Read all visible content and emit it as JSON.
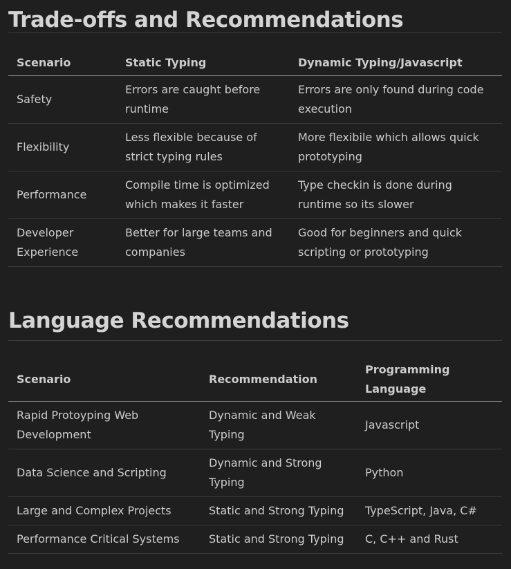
{
  "tradeoffs": {
    "heading": "Trade-offs and Recommendations",
    "headers": [
      "Scenario",
      "Static Typing",
      "Dynamic Typing/Javascript"
    ],
    "rows": [
      [
        "Safety",
        "Errors are caught before runtime",
        "Errors are only found during code execution"
      ],
      [
        "Flexibility",
        "Less flexible because of strict typing rules",
        "More flexibile which allows quick prototyping"
      ],
      [
        "Performance",
        "Compile time is optimized which makes it faster",
        "Type checkin is done during runtime so its slower"
      ],
      [
        "Developer Experience",
        "Better for large teams and companies",
        "Good for beginners and quick scripting or prototyping"
      ]
    ]
  },
  "language": {
    "heading": "Language Recommendations",
    "headers": [
      "Scenario",
      "Recommendation",
      "Programming Language"
    ],
    "rows": [
      [
        "Rapid Protoyping Web Development",
        "Dynamic and Weak Typing",
        "Javascript"
      ],
      [
        "Data Science and Scripting",
        "Dynamic and Strong Typing",
        "Python"
      ],
      [
        "Large and Complex Projects",
        "Static and Strong Typing",
        "TypeScript, Java, C#"
      ],
      [
        "Performance Critical Systems",
        "Static and Strong Typing",
        "C, C++ and Rust"
      ]
    ]
  }
}
